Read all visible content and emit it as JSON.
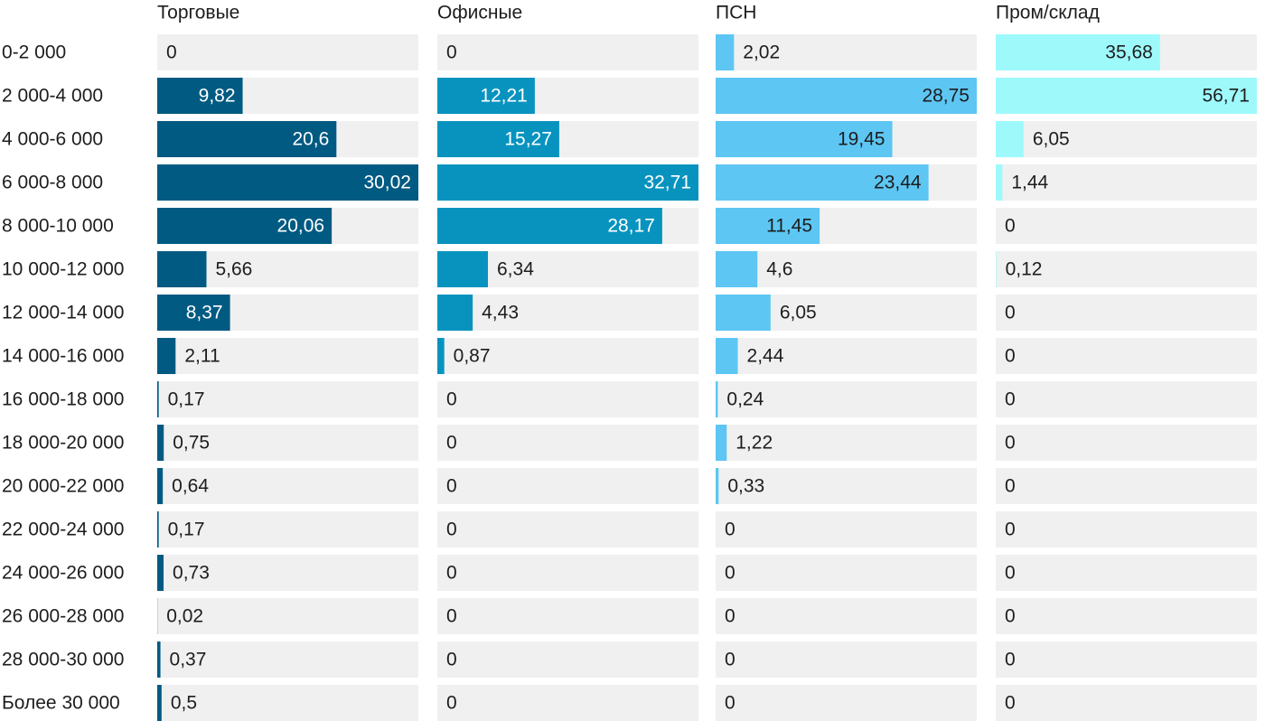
{
  "chart_data": {
    "type": "bar",
    "categories": [
      "0-2 000",
      "2 000-4 000",
      "4 000-6 000",
      "6 000-8 000",
      "8 000-10 000",
      "10 000-12 000",
      "12 000-14 000",
      "14 000-16 000",
      "16 000-18 000",
      "18 000-20 000",
      "20 000-22 000",
      "22 000-24 000",
      "24 000-26 000",
      "26 000-28 000",
      "28 000-30 000",
      "Более 30 000"
    ],
    "series": [
      {
        "name": "Торговые",
        "color": "#005a82",
        "xlim": [
          0,
          30.02
        ],
        "values": [
          0,
          9.82,
          20.6,
          30.02,
          20.06,
          5.66,
          8.37,
          2.11,
          0.17,
          0.75,
          0.64,
          0.17,
          0.73,
          0.02,
          0.37,
          0.5
        ],
        "value_labels": [
          "0",
          "9,82",
          "20,6",
          "30,02",
          "20,06",
          "5,66",
          "8,37",
          "2,11",
          "0,17",
          "0,75",
          "0,64",
          "0,17",
          "0,73",
          "0,02",
          "0,37",
          "0,5"
        ]
      },
      {
        "name": "Офисные",
        "color": "#0893bf",
        "xlim": [
          0,
          32.71
        ],
        "values": [
          0,
          12.21,
          15.27,
          32.71,
          28.17,
          6.34,
          4.43,
          0.87,
          0,
          0,
          0,
          0,
          0,
          0,
          0,
          0
        ],
        "value_labels": [
          "0",
          "12,21",
          "15,27",
          "32,71",
          "28,17",
          "6,34",
          "4,43",
          "0,87",
          "0",
          "0",
          "0",
          "0",
          "0",
          "0",
          "0",
          "0"
        ]
      },
      {
        "name": "ПСН",
        "color": "#5dc6f3",
        "xlim": [
          0,
          28.75
        ],
        "values": [
          2.02,
          28.75,
          19.45,
          23.44,
          11.45,
          4.6,
          6.05,
          2.44,
          0.24,
          1.22,
          0.33,
          0,
          0,
          0,
          0,
          0
        ],
        "value_labels": [
          "2,02",
          "28,75",
          "19,45",
          "23,44",
          "11,45",
          "4,6",
          "6,05",
          "2,44",
          "0,24",
          "1,22",
          "0,33",
          "0",
          "0",
          "0",
          "0",
          "0"
        ]
      },
      {
        "name": "Пром/склад",
        "color": "#9ef9fb",
        "xlim": [
          0,
          56.71
        ],
        "values": [
          35.68,
          56.71,
          6.05,
          1.44,
          0,
          0.12,
          0,
          0,
          0,
          0,
          0,
          0,
          0,
          0,
          0,
          0
        ],
        "value_labels": [
          "35,68",
          "56,71",
          "6,05",
          "1,44",
          "0",
          "0,12",
          "0",
          "0",
          "0",
          "0",
          "0",
          "0",
          "0",
          "0",
          "0",
          "0"
        ]
      }
    ]
  }
}
